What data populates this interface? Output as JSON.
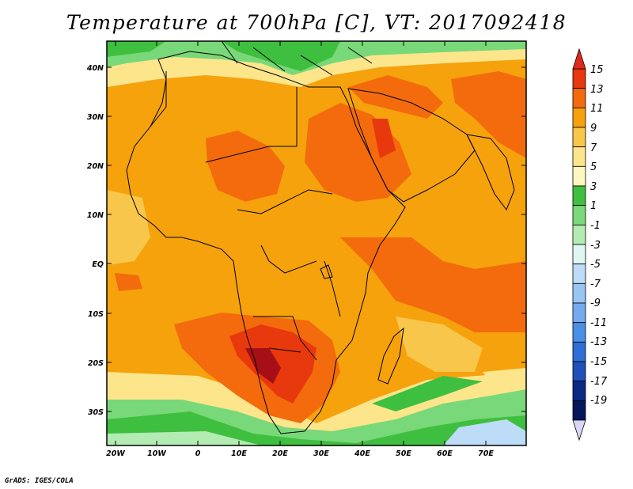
{
  "title": "Temperature at 700hPa [C], VT: 2017092418",
  "credit": "GrADS: IGES/COLA",
  "map": {
    "lat_labels": [
      "40N",
      "30N",
      "20N",
      "10N",
      "EQ",
      "10S",
      "20S",
      "30S"
    ],
    "lon_labels": [
      "20W",
      "10W",
      "0",
      "10E",
      "20E",
      "30E",
      "40E",
      "50E",
      "60E",
      "70E"
    ]
  },
  "colorbar": {
    "levels": [
      "15",
      "13",
      "11",
      "9",
      "7",
      "5",
      "3",
      "1",
      "-1",
      "-3",
      "-5",
      "-7",
      "-9",
      "-11",
      "-13",
      "-15",
      "-17",
      "-19"
    ],
    "colors": [
      "#a50f15",
      "#e8380d",
      "#f36b0c",
      "#f5a20d",
      "#f8c64b",
      "#fde58c",
      "#fef8c0",
      "#3fbf3f",
      "#79d879",
      "#b2ecb2",
      "#dff7f2",
      "#bcdcf7",
      "#99c5f3",
      "#74abee",
      "#4a8fe6",
      "#2c6fd8",
      "#1f4fb8",
      "#0b2a86",
      "#06165a",
      "#dcd6f5"
    ],
    "top_color": "#e0281c",
    "bottom_color": "#dcd6f5"
  }
}
